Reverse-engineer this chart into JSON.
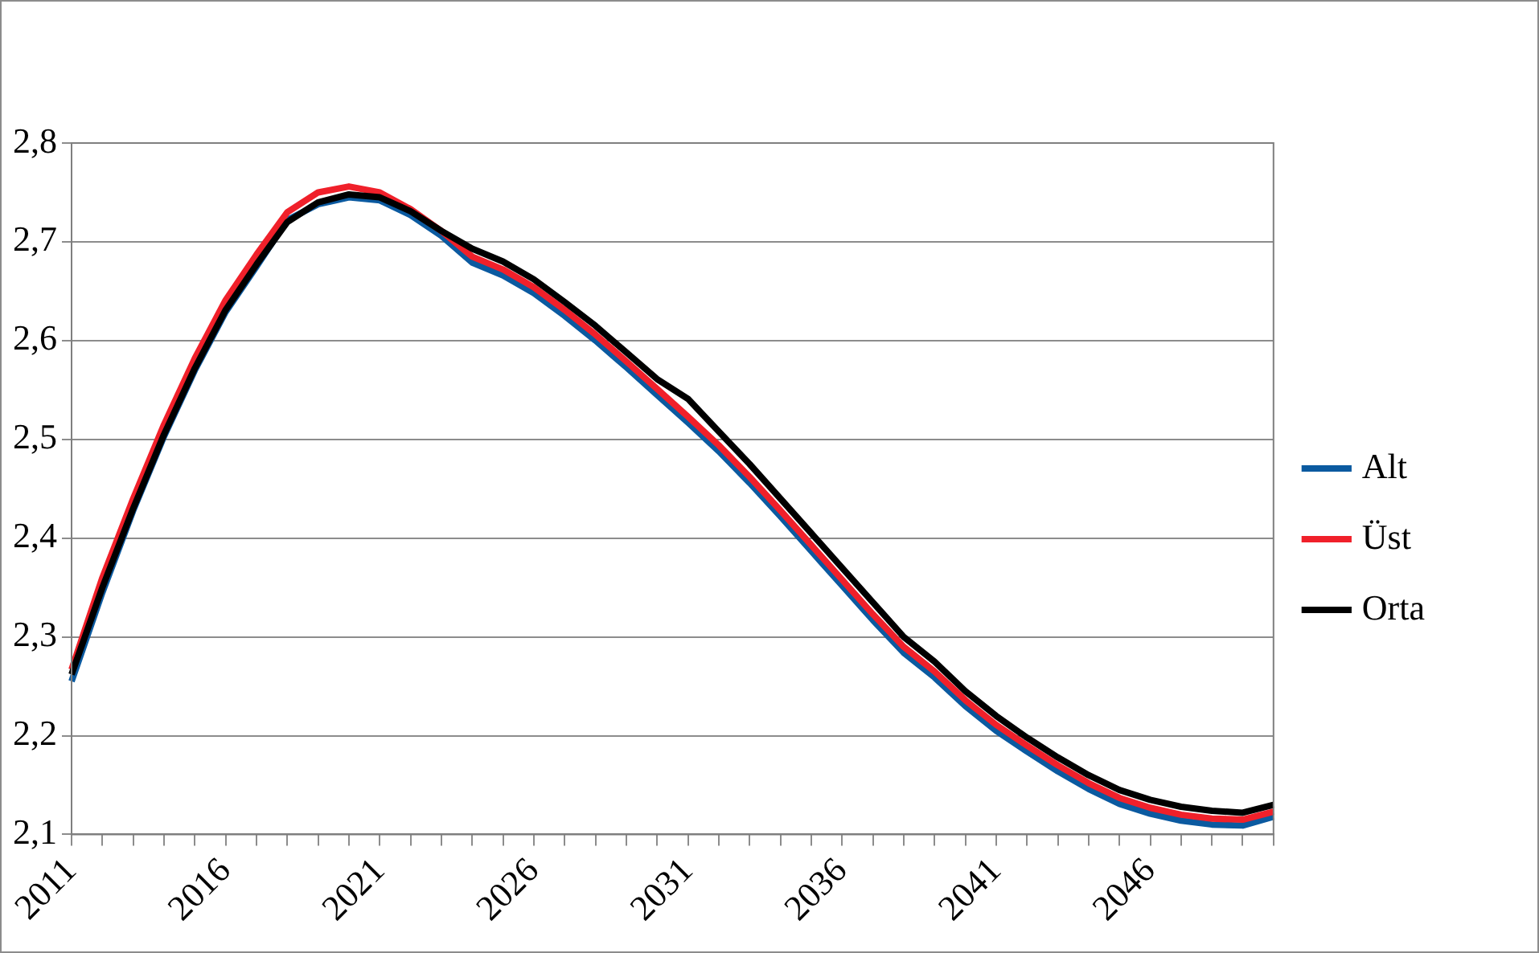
{
  "chart_data": {
    "type": "line",
    "categories": [
      "2011",
      null,
      null,
      null,
      null,
      "2016",
      null,
      null,
      null,
      null,
      "2021",
      null,
      null,
      null,
      null,
      "2026",
      null,
      null,
      null,
      null,
      "2031",
      null,
      null,
      null,
      null,
      "2036",
      null,
      null,
      null,
      null,
      "2041",
      null,
      null,
      null,
      null,
      "2046",
      null,
      null,
      null,
      null
    ],
    "series": [
      {
        "name": "Alt",
        "color": "#0b5aa0",
        "values": [
          2.255,
          2.345,
          2.428,
          2.503,
          2.57,
          2.629,
          2.675,
          2.722,
          2.738,
          2.745,
          2.742,
          2.727,
          2.706,
          2.679,
          2.666,
          2.648,
          2.625,
          2.6,
          2.573,
          2.545,
          2.517,
          2.488,
          2.456,
          2.422,
          2.387,
          2.352,
          2.317,
          2.284,
          2.259,
          2.23,
          2.205,
          2.184,
          2.164,
          2.146,
          2.131,
          2.121,
          2.114,
          2.11,
          2.109,
          2.118
        ]
      },
      {
        "name": "Üst",
        "color": "#f0202a",
        "values": [
          2.267,
          2.36,
          2.44,
          2.515,
          2.582,
          2.641,
          2.687,
          2.73,
          2.75,
          2.756,
          2.75,
          2.733,
          2.711,
          2.685,
          2.672,
          2.654,
          2.631,
          2.606,
          2.579,
          2.551,
          2.523,
          2.494,
          2.462,
          2.428,
          2.393,
          2.358,
          2.323,
          2.29,
          2.265,
          2.236,
          2.211,
          2.19,
          2.17,
          2.152,
          2.137,
          2.127,
          2.12,
          2.116,
          2.115,
          2.123
        ]
      },
      {
        "name": "Orta",
        "color": "#000000",
        "values": [
          2.262,
          2.35,
          2.43,
          2.505,
          2.572,
          2.631,
          2.677,
          2.72,
          2.74,
          2.748,
          2.745,
          2.731,
          2.711,
          2.693,
          2.68,
          2.662,
          2.639,
          2.615,
          2.588,
          2.561,
          2.541,
          2.508,
          2.475,
          2.44,
          2.405,
          2.37,
          2.335,
          2.3,
          2.275,
          2.245,
          2.22,
          2.198,
          2.178,
          2.16,
          2.145,
          2.135,
          2.128,
          2.124,
          2.122,
          2.13
        ]
      }
    ],
    "ylim": [
      2.1,
      2.8
    ],
    "yticks": [
      {
        "value": 2.1,
        "label": "2,1"
      },
      {
        "value": 2.2,
        "label": "2,2"
      },
      {
        "value": 2.3,
        "label": "2,3"
      },
      {
        "value": 2.4,
        "label": "2,4"
      },
      {
        "value": 2.5,
        "label": "2,5"
      },
      {
        "value": 2.6,
        "label": "2,6"
      },
      {
        "value": 2.7,
        "label": "2,7"
      },
      {
        "value": 2.8,
        "label": "2,8"
      }
    ],
    "grid": "y",
    "legend": "right",
    "marker": "none",
    "line_style": "solid"
  }
}
